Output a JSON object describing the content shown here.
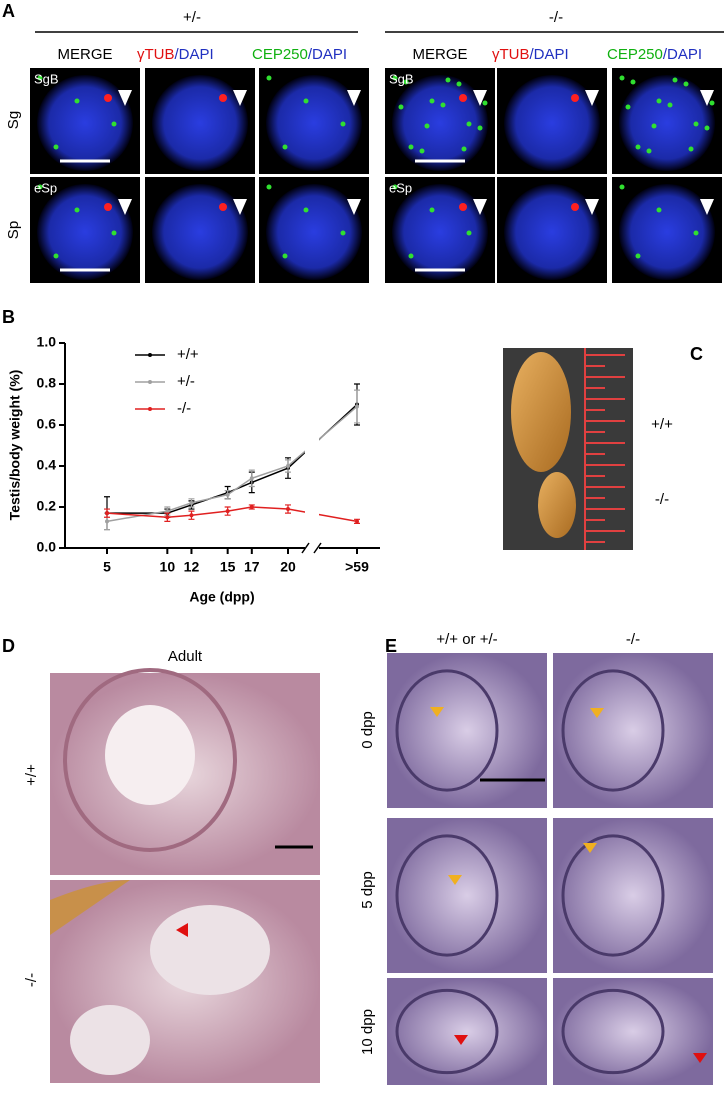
{
  "panel_a": {
    "label": "A",
    "groups": [
      "+/-",
      "-/-"
    ],
    "merge": "MERGE",
    "gtub": "γTUB",
    "cep250": "CEP250",
    "dapi": "/DAPI",
    "rows": [
      "Sg",
      "Sp"
    ],
    "image_labels": [
      "SgB",
      "eSp"
    ]
  },
  "panel_b": {
    "label": "B"
  },
  "chart_data": {
    "type": "line",
    "categories": [
      "5",
      "10",
      "12",
      "15",
      "17",
      "20",
      ">59"
    ],
    "series": [
      {
        "name": "+/+",
        "color": "#000000",
        "values": [
          0.17,
          0.17,
          0.21,
          0.27,
          0.32,
          0.39,
          0.7
        ],
        "errors": [
          0.08,
          0.02,
          0.02,
          0.03,
          0.05,
          0.05,
          0.1
        ]
      },
      {
        "name": "+/-",
        "color": "#a0a0a0",
        "values": [
          0.13,
          0.18,
          0.22,
          0.26,
          0.34,
          0.4,
          0.69
        ],
        "errors": [
          0.04,
          0.02,
          0.02,
          0.02,
          0.04,
          0.03,
          0.08
        ]
      },
      {
        "name": "-/-",
        "color": "#e02020",
        "values": [
          0.17,
          0.15,
          0.16,
          0.18,
          0.2,
          0.19,
          0.13
        ],
        "errors": [
          0.02,
          0.02,
          0.02,
          0.02,
          0.01,
          0.02,
          0.01
        ]
      }
    ],
    "ylim": [
      0,
      1
    ],
    "yticks": [
      {
        "value": 0,
        "label": "0.0"
      },
      0.2,
      0.4,
      0.6,
      0.8,
      {
        "value": 1,
        "label": "1.0"
      }
    ],
    "xlabel": "Age (dpp)",
    "ylabel": "Testis/body weight (%)",
    "legend": "top-left"
  },
  "panel_c": {
    "label": "C",
    "rows": [
      "+/+",
      "-/-"
    ]
  },
  "panel_d": {
    "label": "D",
    "title": "Adult",
    "rows": [
      "+/+",
      "-/-"
    ]
  },
  "panel_e": {
    "label": "E",
    "columns": [
      "+/+ or +/-",
      "-/-"
    ],
    "rows": [
      "0 dpp",
      "5 dpp",
      "10 dpp"
    ]
  }
}
